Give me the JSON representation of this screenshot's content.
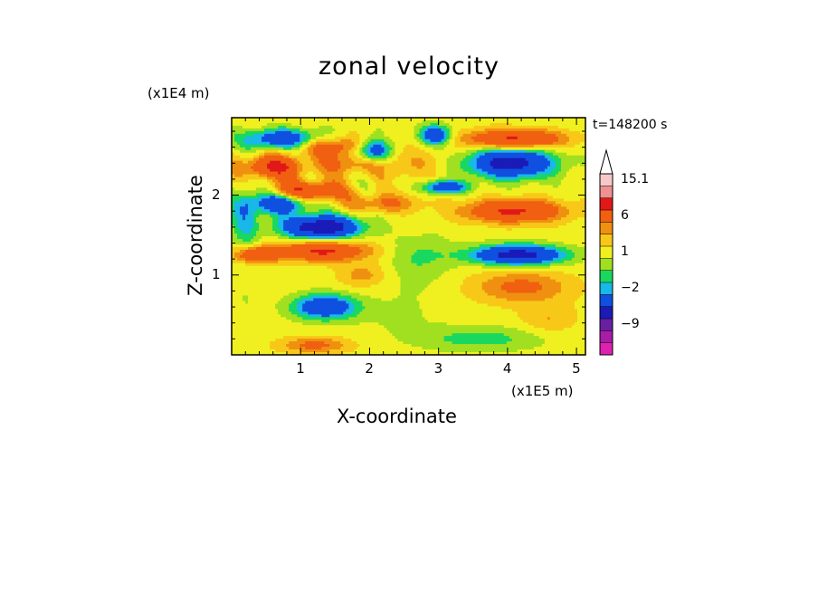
{
  "chart_data": {
    "type": "heatmap",
    "title": "zonal velocity",
    "xlabel": "X-coordinate",
    "ylabel": "Z-coordinate",
    "x_unit_label": "(x1E5 m)",
    "y_unit_label": "(x1E4 m)",
    "time_label": "t=148200 s",
    "xlim": [
      0,
      5.13
    ],
    "ylim": [
      0,
      2.97
    ],
    "x_ticks": [
      "1",
      "2",
      "3",
      "4",
      "5"
    ],
    "y_ticks": [
      "1",
      "2"
    ],
    "colorbar": {
      "levels": [
        -15,
        -12,
        -9,
        -6,
        -3,
        -2,
        -1,
        0,
        1,
        2,
        3,
        6,
        9,
        12,
        15.1
      ],
      "colors": [
        "#e020b0",
        "#a81ca8",
        "#6a1fa3",
        "#1b1bb8",
        "#1050e0",
        "#18b8e8",
        "#18d860",
        "#a0e020",
        "#f0f020",
        "#f8c818",
        "#f09010",
        "#f06010",
        "#e01818",
        "#f09090",
        "#f8c8c8"
      ],
      "tick_labels": [
        "15.1",
        "6",
        "1",
        "-2",
        "-9"
      ]
    },
    "field": {
      "background_value": 0.5,
      "features": [
        {
          "x": 0.75,
          "z": 2.7,
          "rx": 0.55,
          "rz": 0.12,
          "v": -6
        },
        {
          "x": 1.4,
          "z": 2.62,
          "rx": 0.5,
          "rz": 0.12,
          "v": 4
        },
        {
          "x": 0.6,
          "z": 2.35,
          "rx": 0.45,
          "rz": 0.14,
          "v": 6
        },
        {
          "x": 1.7,
          "z": 2.4,
          "rx": 0.4,
          "rz": 0.15,
          "v": 3
        },
        {
          "x": 2.05,
          "z": 2.55,
          "rx": 0.25,
          "rz": 0.14,
          "v": -6
        },
        {
          "x": 2.6,
          "z": 2.4,
          "rx": 0.5,
          "rz": 0.2,
          "v": 1.5
        },
        {
          "x": 2.95,
          "z": 2.75,
          "rx": 0.22,
          "rz": 0.12,
          "v": -6
        },
        {
          "x": 4.05,
          "z": 2.4,
          "rx": 0.6,
          "rz": 0.18,
          "v": -8
        },
        {
          "x": 4.1,
          "z": 2.7,
          "rx": 0.7,
          "rz": 0.12,
          "v": 6
        },
        {
          "x": 0.7,
          "z": 1.9,
          "rx": 0.4,
          "rz": 0.13,
          "v": -6
        },
        {
          "x": 1.1,
          "z": 2.05,
          "rx": 0.5,
          "rz": 0.12,
          "v": 6
        },
        {
          "x": 2.2,
          "z": 1.9,
          "rx": 0.5,
          "rz": 0.12,
          "v": 3
        },
        {
          "x": 3.1,
          "z": 2.1,
          "rx": 0.3,
          "rz": 0.08,
          "v": -6
        },
        {
          "x": 4.1,
          "z": 1.8,
          "rx": 0.7,
          "rz": 0.14,
          "v": 6
        },
        {
          "x": 1.3,
          "z": 1.6,
          "rx": 0.55,
          "rz": 0.14,
          "v": -9
        },
        {
          "x": 0.2,
          "z": 1.75,
          "rx": 0.2,
          "rz": 0.4,
          "v": -3
        },
        {
          "x": 1.3,
          "z": 1.3,
          "rx": 0.65,
          "rz": 0.12,
          "v": 6
        },
        {
          "x": 0.35,
          "z": 1.25,
          "rx": 0.3,
          "rz": 0.1,
          "v": 5
        },
        {
          "x": 2.75,
          "z": 1.25,
          "rx": 0.45,
          "rz": 0.25,
          "v": -1.5
        },
        {
          "x": 4.15,
          "z": 1.25,
          "rx": 0.65,
          "rz": 0.12,
          "v": -8
        },
        {
          "x": 2.6,
          "z": 0.9,
          "rx": 0.55,
          "rz": 0.35,
          "v": -0.5
        },
        {
          "x": 1.9,
          "z": 1.0,
          "rx": 0.35,
          "rz": 0.15,
          "v": 2
        },
        {
          "x": 4.2,
          "z": 0.85,
          "rx": 0.7,
          "rz": 0.2,
          "v": 3
        },
        {
          "x": 1.35,
          "z": 0.6,
          "rx": 0.45,
          "rz": 0.15,
          "v": -6
        },
        {
          "x": 0.2,
          "z": 0.7,
          "rx": 0.2,
          "rz": 0.5,
          "v": -0.5
        },
        {
          "x": 2.4,
          "z": 0.45,
          "rx": 0.7,
          "rz": 0.25,
          "v": -0.5
        },
        {
          "x": 3.6,
          "z": 0.2,
          "rx": 0.9,
          "rz": 0.15,
          "v": -2
        },
        {
          "x": 4.6,
          "z": 0.45,
          "rx": 0.4,
          "rz": 0.18,
          "v": 1.5
        },
        {
          "x": 1.2,
          "z": 0.12,
          "rx": 0.5,
          "rz": 0.1,
          "v": 3
        }
      ]
    }
  }
}
